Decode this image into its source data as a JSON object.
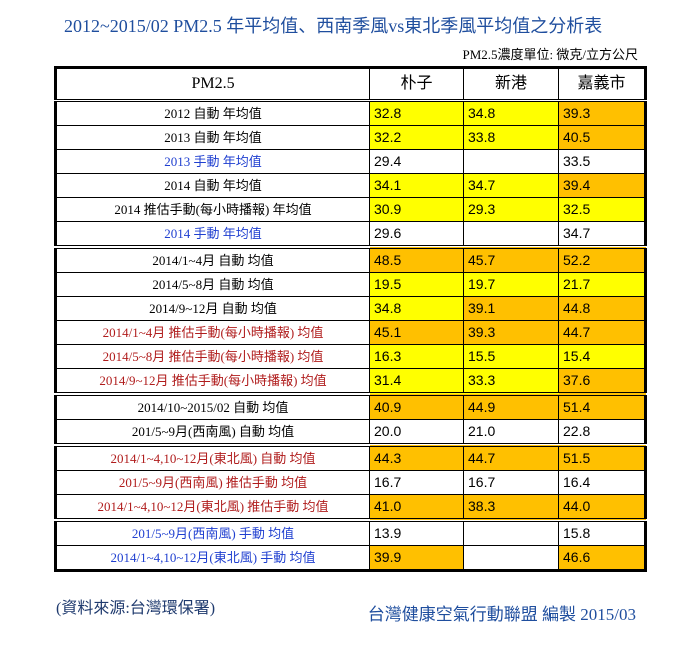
{
  "title": "2012~2015/02  PM2.5 年平均值、西南季風vs東北季風平均值之分析表",
  "unit_note": "PM2.5濃度單位: 微克/立方公尺",
  "headers": [
    "PM2.5",
    "朴子",
    "新港",
    "嘉義市"
  ],
  "rows": [
    {
      "label": "2012  自動  年均值",
      "color": "black",
      "cells": [
        {
          "v": "32.8",
          "bg": "y"
        },
        {
          "v": "34.8",
          "bg": "y"
        },
        {
          "v": "39.3",
          "bg": "o"
        }
      ]
    },
    {
      "label": "2013  自動  年均值",
      "color": "black",
      "cells": [
        {
          "v": "32.2",
          "bg": "y"
        },
        {
          "v": "33.8",
          "bg": "y"
        },
        {
          "v": "40.5",
          "bg": "o"
        }
      ]
    },
    {
      "label": "2013  手動  年均值",
      "color": "blue",
      "cells": [
        {
          "v": "29.4",
          "bg": "w"
        },
        {
          "v": "",
          "bg": "w"
        },
        {
          "v": "33.5",
          "bg": "w"
        }
      ]
    },
    {
      "label": "2014  自動  年均值",
      "color": "black",
      "cells": [
        {
          "v": "34.1",
          "bg": "y"
        },
        {
          "v": "34.7",
          "bg": "y"
        },
        {
          "v": "39.4",
          "bg": "o"
        }
      ]
    },
    {
      "label": "2014 推估手動(每小時播報) 年均值",
      "color": "black",
      "cells": [
        {
          "v": "30.9",
          "bg": "y"
        },
        {
          "v": "29.3",
          "bg": "y"
        },
        {
          "v": "32.5",
          "bg": "y"
        }
      ]
    },
    {
      "label": "2014  手動  年均值",
      "color": "blue",
      "cells": [
        {
          "v": "29.6",
          "bg": "w"
        },
        {
          "v": "",
          "bg": "w"
        },
        {
          "v": "34.7",
          "bg": "w"
        }
      ]
    },
    {
      "label": "2014/1~4月  自動  均值",
      "color": "black",
      "sep": true,
      "cells": [
        {
          "v": "48.5",
          "bg": "o"
        },
        {
          "v": "45.7",
          "bg": "o"
        },
        {
          "v": "52.2",
          "bg": "o"
        }
      ]
    },
    {
      "label": "2014/5~8月  自動  均值",
      "color": "black",
      "cells": [
        {
          "v": "19.5",
          "bg": "y"
        },
        {
          "v": "19.7",
          "bg": "y"
        },
        {
          "v": "21.7",
          "bg": "y"
        }
      ]
    },
    {
      "label": "2014/9~12月  自動  均值",
      "color": "black",
      "cells": [
        {
          "v": "34.8",
          "bg": "y"
        },
        {
          "v": "39.1",
          "bg": "o"
        },
        {
          "v": "44.8",
          "bg": "o"
        }
      ]
    },
    {
      "label": "2014/1~4月  推估手動(每小時播報)  均值",
      "color": "red",
      "cells": [
        {
          "v": "45.1",
          "bg": "o"
        },
        {
          "v": "39.3",
          "bg": "o"
        },
        {
          "v": "44.7",
          "bg": "o"
        }
      ]
    },
    {
      "label": "2014/5~8月  推估手動(每小時播報)  均值",
      "color": "red",
      "cells": [
        {
          "v": "16.3",
          "bg": "y"
        },
        {
          "v": "15.5",
          "bg": "y"
        },
        {
          "v": "15.4",
          "bg": "y"
        }
      ]
    },
    {
      "label": "2014/9~12月  推估手動(每小時播報)  均值",
      "color": "red",
      "cells": [
        {
          "v": "31.4",
          "bg": "y"
        },
        {
          "v": "33.3",
          "bg": "y"
        },
        {
          "v": "37.6",
          "bg": "o"
        }
      ]
    },
    {
      "label": "2014/10~2015/02  自動  均值",
      "color": "black",
      "sep": true,
      "cells": [
        {
          "v": "40.9",
          "bg": "o"
        },
        {
          "v": "44.9",
          "bg": "o"
        },
        {
          "v": "51.4",
          "bg": "o"
        }
      ]
    },
    {
      "label": "201/5~9月(西南風)  自動  均值",
      "color": "black",
      "cells": [
        {
          "v": "20.0",
          "bg": "w"
        },
        {
          "v": "21.0",
          "bg": "w"
        },
        {
          "v": "22.8",
          "bg": "w"
        }
      ]
    },
    {
      "label": "2014/1~4,10~12月(東北風)  自動  均值",
      "color": "red",
      "sep": true,
      "cells": [
        {
          "v": "44.3",
          "bg": "o"
        },
        {
          "v": "44.7",
          "bg": "o"
        },
        {
          "v": "51.5",
          "bg": "o"
        }
      ]
    },
    {
      "label": "201/5~9月(西南風)  推估手動  均值",
      "color": "red",
      "cells": [
        {
          "v": "16.7",
          "bg": "w"
        },
        {
          "v": "16.7",
          "bg": "w"
        },
        {
          "v": "16.4",
          "bg": "w"
        }
      ]
    },
    {
      "label": "2014/1~4,10~12月(東北風)  推估手動  均值",
      "color": "red",
      "cells": [
        {
          "v": "41.0",
          "bg": "o"
        },
        {
          "v": "38.3",
          "bg": "o"
        },
        {
          "v": "44.0",
          "bg": "o"
        }
      ]
    },
    {
      "label": "201/5~9月(西南風)  手動  均值",
      "color": "blue",
      "sep": true,
      "cells": [
        {
          "v": "13.9",
          "bg": "w"
        },
        {
          "v": "",
          "bg": "w"
        },
        {
          "v": "15.8",
          "bg": "w"
        }
      ]
    },
    {
      "label": "2014/1~4,10~12月(東北風)  手動  均值",
      "color": "blue",
      "cells": [
        {
          "v": "39.9",
          "bg": "o"
        },
        {
          "v": "",
          "bg": "w"
        },
        {
          "v": "46.6",
          "bg": "o"
        }
      ]
    }
  ],
  "source": "(資料來源:台灣環保署)",
  "credit": "台灣健康空氣行動聯盟  編製  2015/03",
  "colors": {
    "yellow": "#ffff00",
    "orange": "#ffc000",
    "blue_text": "#1f3fd0",
    "red_text": "#b01c1c",
    "title": "#1f4e9e"
  }
}
